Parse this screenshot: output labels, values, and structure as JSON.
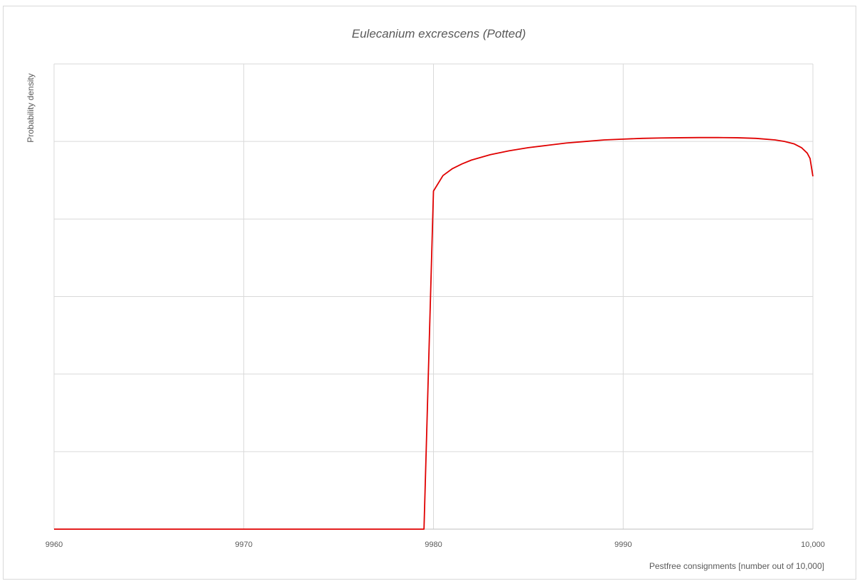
{
  "chart_data": {
    "type": "line",
    "title": "Eulecanium excrescens  (Potted)",
    "xlabel": "Pestfree consignments [number out of 10,000]",
    "ylabel": "Probability density",
    "xlim": [
      9960,
      10000
    ],
    "ylim": [
      0,
      6
    ],
    "x_ticks": [
      9960,
      9970,
      9980,
      9990,
      10000
    ],
    "x_tick_labels": [
      "9960",
      "9970",
      "9980",
      "9990",
      "10,000"
    ],
    "y_ticks_count": 6,
    "y_tick_labels_shown": false,
    "grid": true,
    "legend": "none",
    "line_color": "#e00000",
    "series": [
      {
        "x": [
          9960,
          9970,
          9979.5,
          9980,
          9980.5,
          9981,
          9981.5,
          9982,
          9983,
          9984,
          9985,
          9986,
          9987,
          9988,
          9989,
          9990,
          9991,
          9992,
          9993,
          9994,
          9995,
          9996,
          9997,
          9998,
          9998.5,
          9999,
          9999.4,
          9999.7,
          9999.85,
          10000
        ],
        "y": [
          0,
          0,
          0,
          4.36,
          4.56,
          4.65,
          4.71,
          4.76,
          4.83,
          4.88,
          4.92,
          4.95,
          4.98,
          5.0,
          5.02,
          5.03,
          5.04,
          5.045,
          5.048,
          5.05,
          5.05,
          5.048,
          5.04,
          5.02,
          5.0,
          4.97,
          4.92,
          4.85,
          4.78,
          4.55
        ]
      }
    ]
  }
}
